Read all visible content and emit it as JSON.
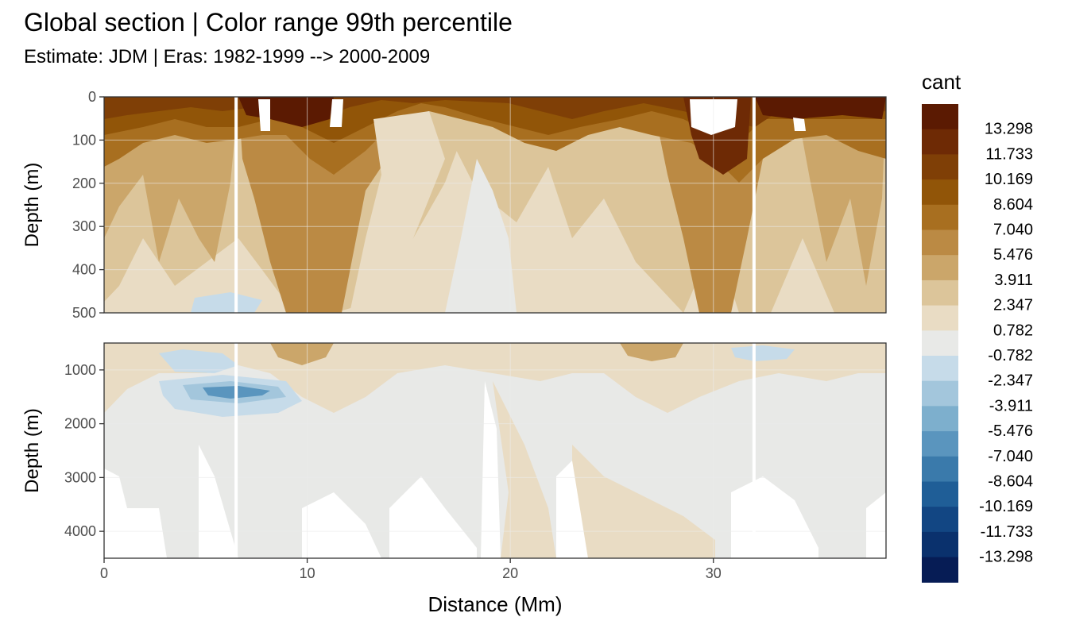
{
  "chart_data": {
    "type": "heatmap",
    "title": "Global section | Color range 99th percentile",
    "subtitle": "Estimate: JDM  | Eras: 1982-1999 --> 2000-2009",
    "xlabel": "Distance (Mm)",
    "ylabel": "Depth (m)",
    "xlim": [
      0,
      38.5
    ],
    "x_ticks": [
      0,
      10,
      20,
      30
    ],
    "grid": true,
    "legend_placement": "right",
    "gap_lines_x": [
      6.5,
      32.0
    ],
    "panels": [
      {
        "name": "upper",
        "ylim": [
          0,
          500
        ],
        "y_ticks": [
          0,
          100,
          200,
          300,
          400,
          500
        ],
        "ylabel": "Depth (m)"
      },
      {
        "name": "lower",
        "ylim": [
          500,
          4500
        ],
        "y_ticks": [
          1000,
          2000,
          3000,
          4000
        ],
        "ylabel": "Depth (m)"
      }
    ],
    "legend": {
      "title": "cant",
      "labels": [
        "13.298",
        "11.733",
        "10.169",
        "8.604",
        "7.040",
        "5.476",
        "3.911",
        "2.347",
        "0.782",
        "-0.782",
        "-2.347",
        "-3.911",
        "-5.476",
        "-7.040",
        "-8.604",
        "-10.169",
        "-11.733",
        "-13.298"
      ],
      "colors": [
        "#5b1a02",
        "#6e2a05",
        "#7f3f06",
        "#915508",
        "#a86f20",
        "#bb8a44",
        "#cba66a",
        "#dcc59a",
        "#e9dcc4",
        "#e8e9e7",
        "#c6dbe9",
        "#a3c6dc",
        "#7dafcd",
        "#5a95be",
        "#3a7aab",
        "#1f5e97",
        "#124683",
        "#0a316d",
        "#061c55"
      ]
    }
  }
}
